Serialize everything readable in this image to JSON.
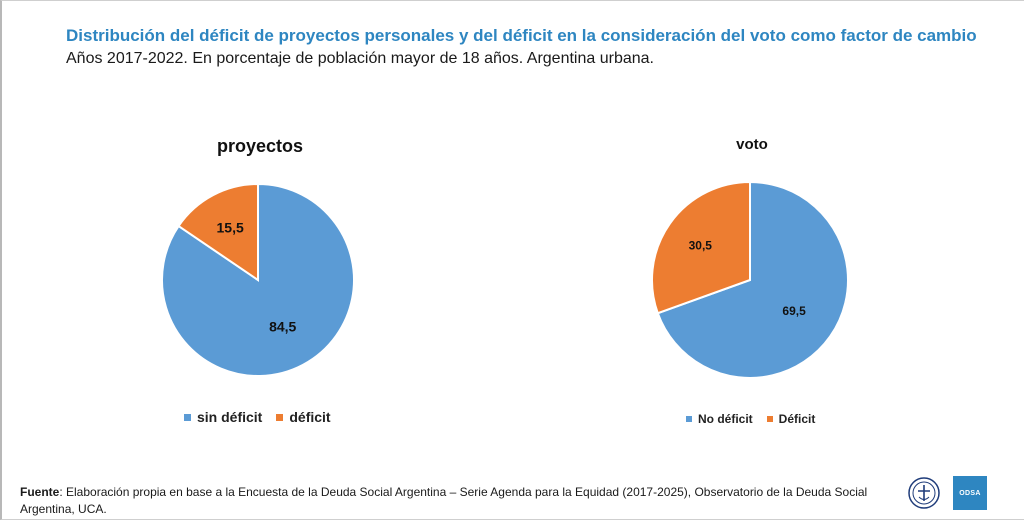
{
  "header": {
    "title": "Distribución del déficit de proyectos personales y del déficit en la consideración del voto como factor de cambio",
    "subtitle": "Años 2017-2022. En porcentaje de población mayor de 18 años. Argentina urbana."
  },
  "chart_data": [
    {
      "type": "pie",
      "title": "proyectos",
      "slices": [
        {
          "label": "sin déficit",
          "value": 84.5,
          "display": "84,5",
          "color": "#5b9bd5"
        },
        {
          "label": "déficit",
          "value": 15.5,
          "display": "15,5",
          "color": "#ed7d31"
        }
      ],
      "legend": [
        "sin déficit",
        "déficit"
      ],
      "legend_position": "bottom"
    },
    {
      "type": "pie",
      "title": "voto",
      "slices": [
        {
          "label": "No déficit",
          "value": 69.5,
          "display": "69,5",
          "color": "#5b9bd5"
        },
        {
          "label": "Déficit",
          "value": 30.5,
          "display": "30,5",
          "color": "#ed7d31"
        }
      ],
      "legend": [
        "No déficit",
        "Déficit"
      ],
      "legend_position": "bottom"
    }
  ],
  "footer": {
    "label": "Fuente",
    "text": ": Elaboración propia en base a la Encuesta de la Deuda Social Argentina – Serie Agenda para la Equidad (2017-2025), Observatorio de la Deuda Social Argentina, UCA."
  },
  "logos": {
    "odsa": "ODSA",
    "seal_icon": "uca-seal-icon"
  },
  "colors": {
    "accent": "#2e86c1",
    "series_blue": "#5b9bd5",
    "series_orange": "#ed7d31"
  }
}
